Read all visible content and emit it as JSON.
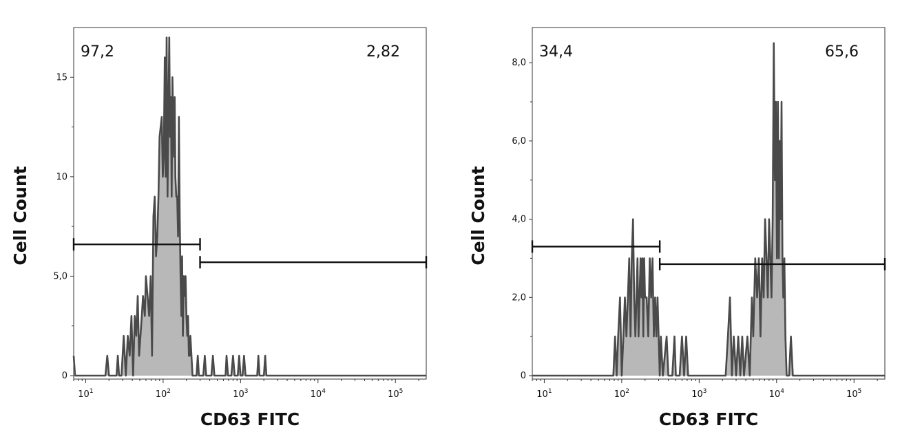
{
  "chart_data": [
    {
      "type": "area",
      "xlabel": "CD63 FITC",
      "ylabel": "Cell Count",
      "xscale": "log",
      "xlim": [
        7,
        250000
      ],
      "ylim": [
        0,
        17.5
      ],
      "x_ticks": [
        {
          "base": "10",
          "exp": "1",
          "value": 10
        },
        {
          "base": "10",
          "exp": "2",
          "value": 100
        },
        {
          "base": "10",
          "exp": "3",
          "value": 1000
        },
        {
          "base": "10",
          "exp": "4",
          "value": 10000
        },
        {
          "base": "10",
          "exp": "5",
          "value": 100000
        }
      ],
      "y_ticks": [
        {
          "label": "0",
          "value": 0
        },
        {
          "label": "5,0",
          "value": 5
        },
        {
          "label": "10",
          "value": 10
        },
        {
          "label": "15",
          "value": 15
        }
      ],
      "gates": [
        {
          "label": "97,2",
          "from": 7,
          "to": 300,
          "y": 6.6
        },
        {
          "label": "2,82",
          "from": 300,
          "to": 250000,
          "y": 5.7
        }
      ],
      "series": [
        {
          "values": [
            [
              7,
              1
            ],
            [
              7.3,
              0
            ],
            [
              18,
              0
            ],
            [
              19,
              1
            ],
            [
              20,
              0
            ],
            [
              25,
              0
            ],
            [
              26,
              1
            ],
            [
              27,
              0
            ],
            [
              29,
              0
            ],
            [
              31,
              2
            ],
            [
              33,
              0
            ],
            [
              35,
              2
            ],
            [
              37,
              1
            ],
            [
              39,
              3
            ],
            [
              41,
              0
            ],
            [
              43,
              3
            ],
            [
              45,
              2
            ],
            [
              47,
              4
            ],
            [
              49,
              1
            ],
            [
              51,
              2
            ],
            [
              53,
              3
            ],
            [
              55,
              4
            ],
            [
              58,
              3
            ],
            [
              60,
              5
            ],
            [
              63,
              4
            ],
            [
              66,
              3
            ],
            [
              69,
              5
            ],
            [
              72,
              1
            ],
            [
              75,
              8
            ],
            [
              78,
              9
            ],
            [
              81,
              6
            ],
            [
              84,
              7
            ],
            [
              87,
              9
            ],
            [
              90,
              12
            ],
            [
              93,
              12.5
            ],
            [
              96,
              13
            ],
            [
              99,
              10
            ],
            [
              102,
              11
            ],
            [
              105,
              16
            ],
            [
              108,
              10
            ],
            [
              111,
              17
            ],
            [
              114,
              9
            ],
            [
              117,
              13
            ],
            [
              120,
              17
            ],
            [
              123,
              12
            ],
            [
              126,
              14
            ],
            [
              129,
              9
            ],
            [
              132,
              15
            ],
            [
              135,
              13
            ],
            [
              138,
              11
            ],
            [
              141,
              14
            ],
            [
              144,
              10
            ],
            [
              148,
              9
            ],
            [
              152,
              9
            ],
            [
              156,
              7
            ],
            [
              160,
              13
            ],
            [
              164,
              8
            ],
            [
              168,
              5
            ],
            [
              172,
              3
            ],
            [
              176,
              6
            ],
            [
              180,
              2
            ],
            [
              185,
              5
            ],
            [
              190,
              4
            ],
            [
              195,
              5
            ],
            [
              200,
              3
            ],
            [
              205,
              2
            ],
            [
              210,
              3
            ],
            [
              215,
              1
            ],
            [
              220,
              1
            ],
            [
              225,
              2
            ],
            [
              240,
              0
            ],
            [
              270,
              0
            ],
            [
              280,
              1
            ],
            [
              290,
              0
            ],
            [
              330,
              0
            ],
            [
              345,
              1
            ],
            [
              360,
              0
            ],
            [
              420,
              0
            ],
            [
              440,
              1
            ],
            [
              460,
              0
            ],
            [
              640,
              0
            ],
            [
              660,
              1
            ],
            [
              690,
              0
            ],
            [
              760,
              0
            ],
            [
              800,
              1
            ],
            [
              840,
              0
            ],
            [
              920,
              0
            ],
            [
              960,
              1
            ],
            [
              1000,
              0
            ],
            [
              1060,
              0
            ],
            [
              1110,
              1
            ],
            [
              1160,
              0
            ],
            [
              1640,
              0
            ],
            [
              1700,
              1
            ],
            [
              1760,
              0
            ],
            [
              2000,
              0
            ],
            [
              2080,
              1
            ],
            [
              2160,
              0
            ],
            [
              250000,
              0
            ]
          ]
        }
      ]
    },
    {
      "type": "area",
      "xlabel": "CD63 FITC",
      "ylabel": "Cell Count",
      "xscale": "log",
      "xlim": [
        7,
        250000
      ],
      "ylim": [
        0,
        8.9
      ],
      "x_ticks": [
        {
          "base": "10",
          "exp": "1",
          "value": 10
        },
        {
          "base": "10",
          "exp": "2",
          "value": 100
        },
        {
          "base": "10",
          "exp": "3",
          "value": 1000
        },
        {
          "base": "10",
          "exp": "4",
          "value": 10000
        },
        {
          "base": "10",
          "exp": "5",
          "value": 100000
        }
      ],
      "y_ticks": [
        {
          "label": "0",
          "value": 0
        },
        {
          "label": "2,0",
          "value": 2
        },
        {
          "label": "4,0",
          "value": 4
        },
        {
          "label": "6,0",
          "value": 6
        },
        {
          "label": "8,0",
          "value": 8
        }
      ],
      "gates": [
        {
          "label": "34,4",
          "from": 7,
          "to": 310,
          "y": 3.3
        },
        {
          "label": "65,6",
          "from": 310,
          "to": 250000,
          "y": 2.85
        }
      ],
      "series": [
        {
          "values": [
            [
              7,
              0
            ],
            [
              78,
              0
            ],
            [
              82,
              1
            ],
            [
              86,
              0
            ],
            [
              90,
              1
            ],
            [
              95,
              2
            ],
            [
              100,
              0
            ],
            [
              105,
              1
            ],
            [
              110,
              2
            ],
            [
              115,
              1
            ],
            [
              120,
              2
            ],
            [
              125,
              3
            ],
            [
              130,
              1
            ],
            [
              135,
              3
            ],
            [
              140,
              4
            ],
            [
              145,
              2
            ],
            [
              150,
              1
            ],
            [
              155,
              2
            ],
            [
              160,
              3
            ],
            [
              165,
              1
            ],
            [
              170,
              2
            ],
            [
              175,
              3
            ],
            [
              180,
              2
            ],
            [
              185,
              3
            ],
            [
              190,
              1
            ],
            [
              195,
              3
            ],
            [
              200,
              2
            ],
            [
              210,
              2
            ],
            [
              220,
              1
            ],
            [
              230,
              3
            ],
            [
              240,
              2
            ],
            [
              250,
              3
            ],
            [
              260,
              1
            ],
            [
              270,
              2
            ],
            [
              280,
              1
            ],
            [
              290,
              2
            ],
            [
              300,
              1
            ],
            [
              310,
              0
            ],
            [
              320,
              1
            ],
            [
              340,
              0
            ],
            [
              380,
              1
            ],
            [
              400,
              0
            ],
            [
              450,
              0
            ],
            [
              480,
              1
            ],
            [
              500,
              0
            ],
            [
              560,
              0
            ],
            [
              600,
              1
            ],
            [
              640,
              0
            ],
            [
              680,
              1
            ],
            [
              720,
              0
            ],
            [
              2200,
              0
            ],
            [
              2350,
              1
            ],
            [
              2500,
              2
            ],
            [
              2650,
              0
            ],
            [
              2800,
              1
            ],
            [
              3000,
              0
            ],
            [
              3200,
              1
            ],
            [
              3400,
              0
            ],
            [
              3600,
              1
            ],
            [
              3800,
              0
            ],
            [
              4200,
              1
            ],
            [
              4500,
              0
            ],
            [
              4800,
              2
            ],
            [
              5000,
              1
            ],
            [
              5300,
              3
            ],
            [
              5600,
              2
            ],
            [
              5900,
              3
            ],
            [
              6200,
              1
            ],
            [
              6500,
              3
            ],
            [
              6800,
              2
            ],
            [
              7100,
              4
            ],
            [
              7400,
              3
            ],
            [
              7700,
              2
            ],
            [
              8000,
              4
            ],
            [
              8300,
              3
            ],
            [
              8600,
              2
            ],
            [
              8900,
              4
            ],
            [
              9200,
              8.5
            ],
            [
              9500,
              5
            ],
            [
              9800,
              7
            ],
            [
              10100,
              3
            ],
            [
              10400,
              7
            ],
            [
              10700,
              3
            ],
            [
              11000,
              6
            ],
            [
              11300,
              4
            ],
            [
              11600,
              7
            ],
            [
              11900,
              3
            ],
            [
              12200,
              2
            ],
            [
              12600,
              3
            ],
            [
              13000,
              1
            ],
            [
              13500,
              0
            ],
            [
              14500,
              0
            ],
            [
              15300,
              1
            ],
            [
              16200,
              0
            ],
            [
              250000,
              0
            ]
          ]
        }
      ]
    }
  ]
}
